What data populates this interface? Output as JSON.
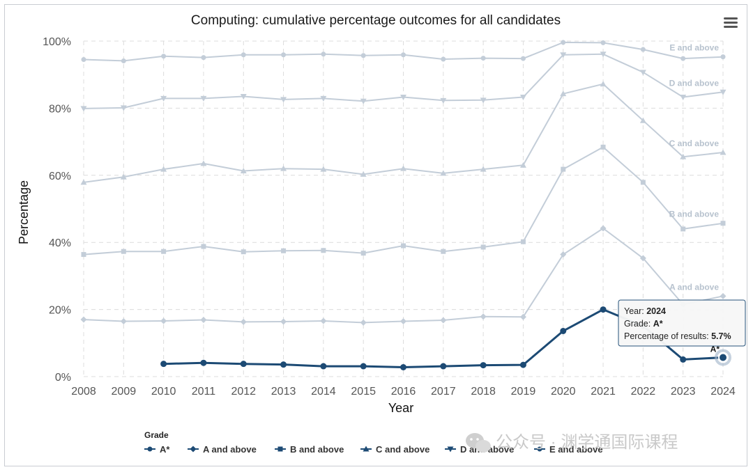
{
  "menu_icon": "hamburger-menu-icon",
  "watermark": {
    "icon": "wechat-icon",
    "text": "公众号 · 渊学通国际课程"
  },
  "tooltip": {
    "year_label": "Year: ",
    "year_value": "2024",
    "grade_label": "Grade: ",
    "grade_value": "A*",
    "pct_label": "Percentage of results: ",
    "pct_value": "5.7%"
  },
  "chart_data": {
    "type": "line",
    "title": "Computing: cumulative percentage outcomes for all candidates",
    "xlabel": "Year",
    "ylabel": "Percentage",
    "ylim": [
      0,
      100
    ],
    "y_ticks": [
      "0%",
      "20%",
      "40%",
      "60%",
      "80%",
      "100%"
    ],
    "y_tick_values": [
      0,
      20,
      40,
      60,
      80,
      100
    ],
    "x": [
      "2008",
      "2009",
      "2010",
      "2011",
      "2012",
      "2013",
      "2014",
      "2015",
      "2016",
      "2017",
      "2018",
      "2019",
      "2020",
      "2021",
      "2022",
      "2023",
      "2024"
    ],
    "grid": true,
    "legend_title": "Grade",
    "legend_position": "bottom",
    "colors": {
      "highlight": "#1c4a74",
      "muted": "#c3cdd8",
      "grid": "#dcdcdc"
    },
    "series": [
      {
        "name": "E and above",
        "marker": "circle",
        "end_label": "E and above",
        "values": [
          94.5,
          94.1,
          95.5,
          95.1,
          95.9,
          95.9,
          96.1,
          95.7,
          95.9,
          94.6,
          94.9,
          94.8,
          99.6,
          99.5,
          97.5,
          94.8,
          95.3
        ]
      },
      {
        "name": "D and above",
        "marker": "triangle-down",
        "end_label": "D and above",
        "values": [
          79.9,
          80.1,
          82.9,
          82.9,
          83.5,
          82.6,
          82.9,
          82.1,
          83.3,
          82.3,
          82.4,
          83.3,
          95.9,
          96.1,
          90.7,
          83.3,
          84.8
        ]
      },
      {
        "name": "C and above",
        "marker": "triangle-up",
        "end_label": "C and above",
        "values": [
          57.9,
          59.5,
          61.8,
          63.5,
          61.3,
          62.0,
          61.8,
          60.3,
          62.0,
          60.6,
          61.8,
          63.0,
          84.3,
          87.2,
          76.3,
          65.5,
          66.8
        ]
      },
      {
        "name": "B and above",
        "marker": "square",
        "end_label": "B and above",
        "values": [
          36.4,
          37.3,
          37.3,
          38.8,
          37.2,
          37.5,
          37.6,
          36.8,
          39.0,
          37.3,
          38.6,
          40.2,
          61.8,
          68.4,
          57.9,
          44.0,
          45.7
        ]
      },
      {
        "name": "A and above",
        "marker": "diamond",
        "end_label": "A and above",
        "values": [
          17.0,
          16.5,
          16.6,
          16.9,
          16.3,
          16.4,
          16.6,
          16.1,
          16.5,
          16.8,
          17.9,
          17.8,
          36.4,
          44.2,
          35.3,
          21.5,
          24.0
        ]
      },
      {
        "name": "A*",
        "marker": "circle",
        "end_label": "A*",
        "highlight": true,
        "values": [
          null,
          null,
          3.8,
          4.1,
          3.8,
          3.6,
          3.1,
          3.1,
          2.8,
          3.1,
          3.4,
          3.5,
          13.6,
          20.0,
          15.1,
          5.1,
          5.7
        ]
      }
    ],
    "legend": [
      {
        "name": "A*",
        "marker": "circle"
      },
      {
        "name": "A and above",
        "marker": "diamond"
      },
      {
        "name": "B and above",
        "marker": "square"
      },
      {
        "name": "C and above",
        "marker": "triangle-up"
      },
      {
        "name": "D and above",
        "marker": "triangle-down"
      },
      {
        "name": "E and above",
        "marker": "circle"
      }
    ]
  }
}
